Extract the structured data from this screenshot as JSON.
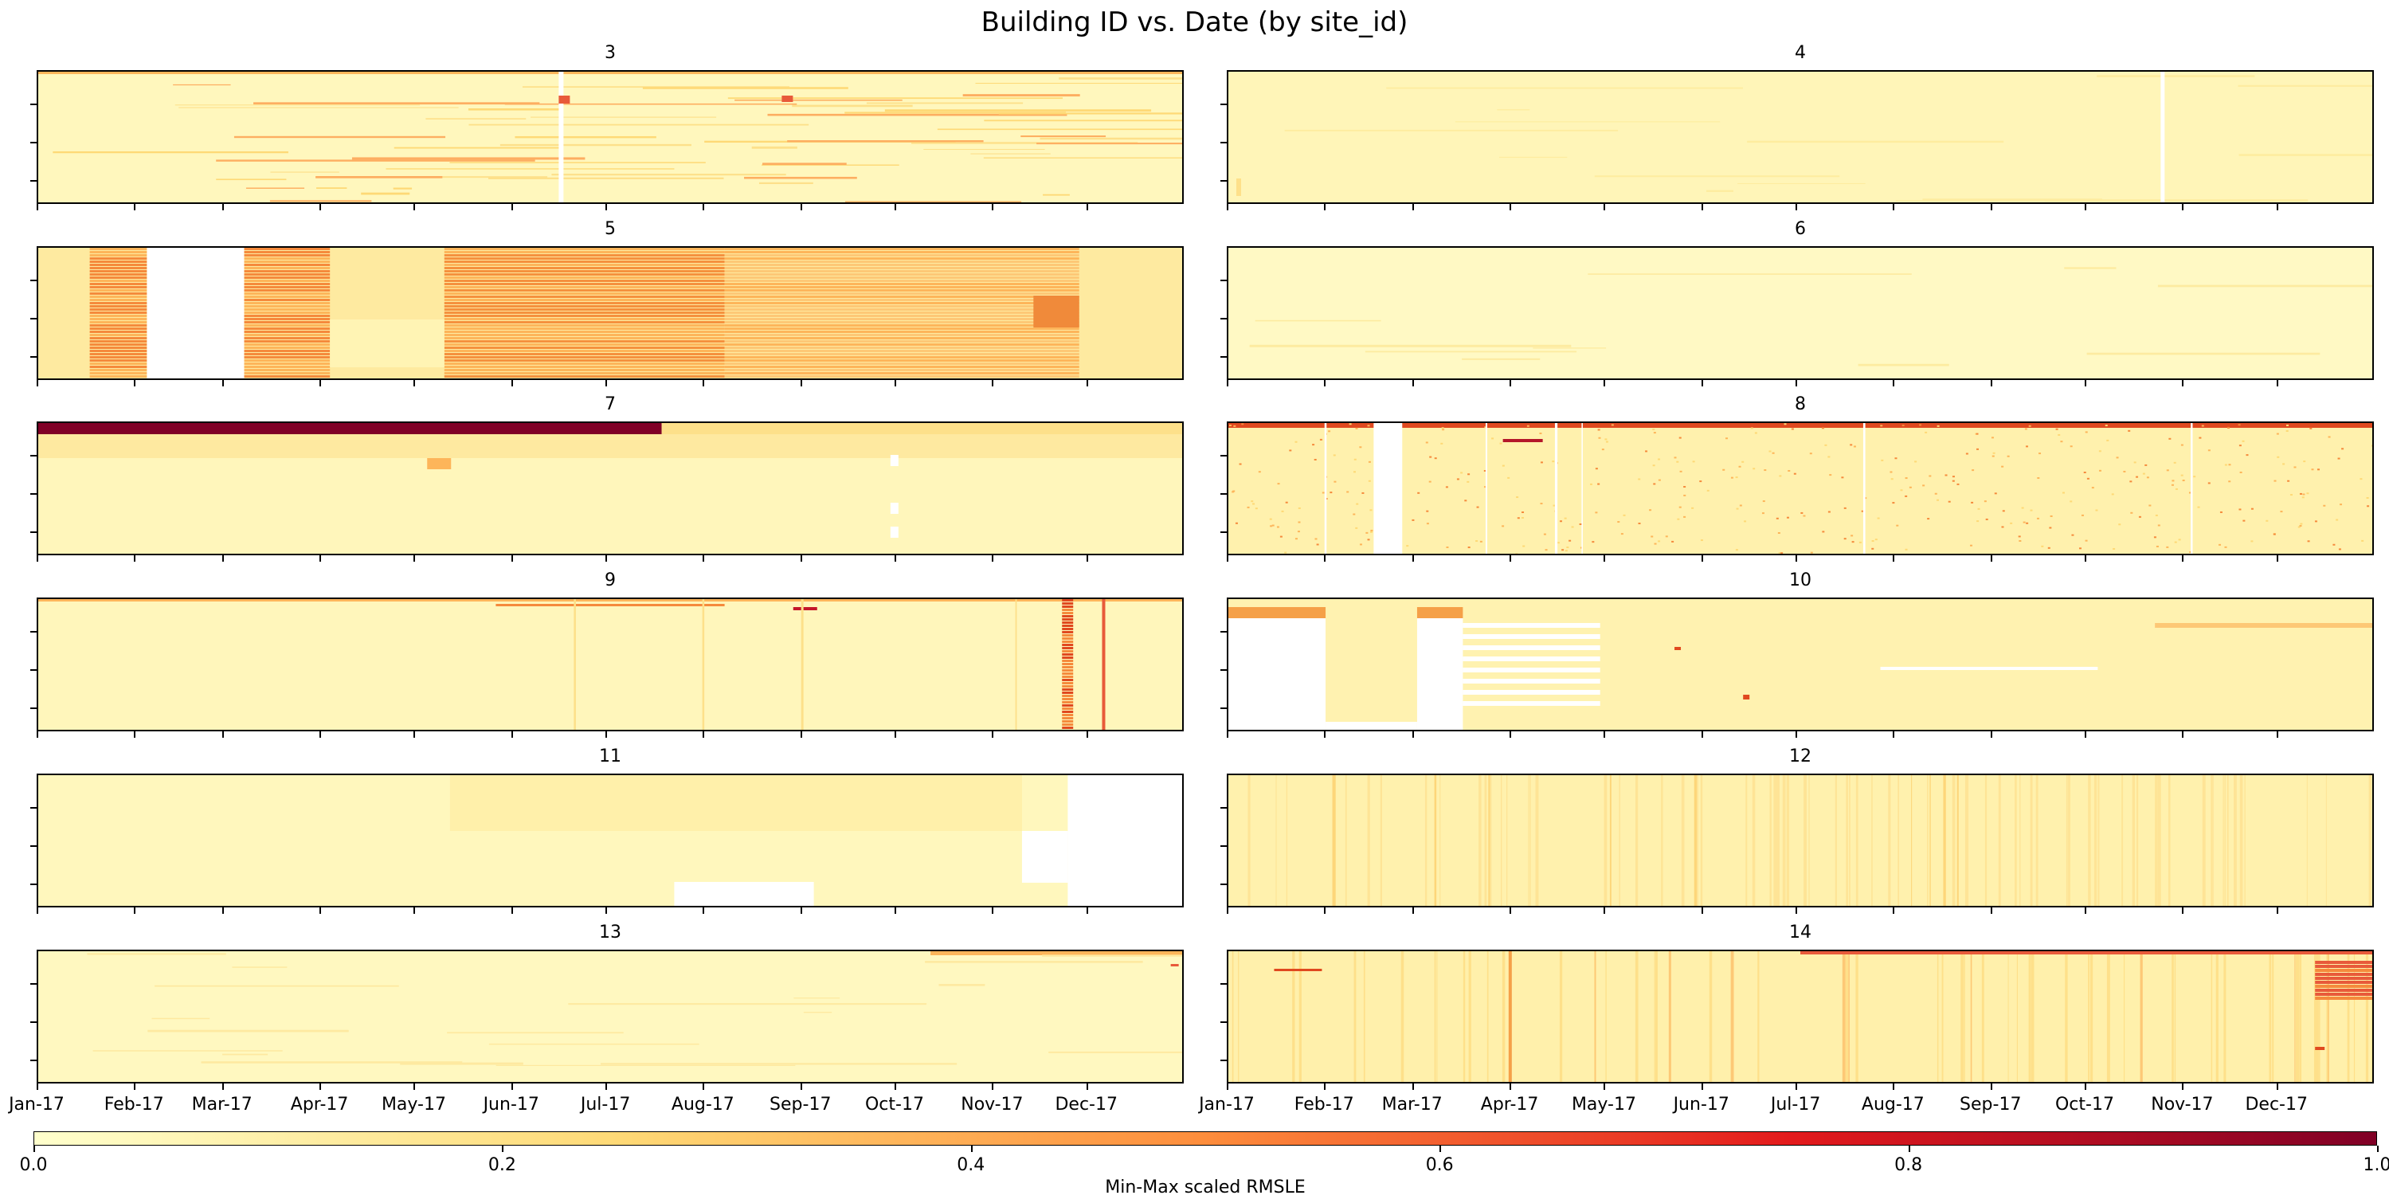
{
  "figure": {
    "title": "Building ID vs. Date (by site_id)"
  },
  "chart_data": {
    "type": "heatmap",
    "x_tick_labels": [
      "Jan-17",
      "Feb-17",
      "Mar-17",
      "Apr-17",
      "May-17",
      "Jun-17",
      "Jul-17",
      "Aug-17",
      "Sep-17",
      "Oct-17",
      "Nov-17",
      "Dec-17"
    ],
    "y_tick_count": 3,
    "colorscale": [
      "#ffffcc",
      "#fed976",
      "#fd8d3c",
      "#e31a1c",
      "#800026"
    ],
    "missing_color": "#ffffff",
    "panels": [
      {
        "site_id": "3",
        "title": "3",
        "base_color": "#fff7bd",
        "notes": "dense fine rows, some orange at top rows"
      },
      {
        "site_id": "4",
        "title": "4",
        "base_color": "#fff5b8",
        "notes": "uniform pale, white gap near Nov"
      },
      {
        "site_id": "5",
        "title": "5",
        "base_color": "#feeaa0",
        "notes": "orange bands Jan-Feb, Mar-Apr, May-Jul; white gaps Feb-Mar, Apr-May"
      },
      {
        "site_id": "6",
        "title": "6",
        "base_color": "#fff9c4",
        "notes": "uniform pale"
      },
      {
        "site_id": "7",
        "title": "7",
        "base_color": "#fff6bb",
        "notes": "top row dark red Jan-Jul, white gaps Oct"
      },
      {
        "site_id": "8",
        "title": "8",
        "base_color": "#fff1ad",
        "notes": "scattered dots, top row orange-red, white gap Feb-Mar"
      },
      {
        "site_id": "9",
        "title": "9",
        "base_color": "#fff6bb",
        "notes": "vertical dark band late Nov"
      },
      {
        "site_id": "10",
        "title": "10",
        "base_color": "#fff2b0",
        "notes": "large white missing regions Jan-Feb and Mar-Apr"
      },
      {
        "site_id": "11",
        "title": "11",
        "base_color": "#fff7bd",
        "notes": "white missing Nov-Dec, Aug block bottom"
      },
      {
        "site_id": "12",
        "title": "12",
        "base_color": "#fff1ad",
        "notes": "faint vertical stripes"
      },
      {
        "site_id": "13",
        "title": "13",
        "base_color": "#fff8c0",
        "notes": "mostly uniform, orange top rows Oct-Dec"
      },
      {
        "site_id": "14",
        "title": "14",
        "base_color": "#fff0ab",
        "notes": "vertical stripes, red block late Dec"
      }
    ],
    "colorbar": {
      "label": "Min-Max scaled RMSLE",
      "ticks": [
        "0.0",
        "0.2",
        "0.4",
        "0.6",
        "0.8",
        "1.0"
      ],
      "range": [
        0,
        1
      ],
      "orientation": "horizontal"
    }
  }
}
